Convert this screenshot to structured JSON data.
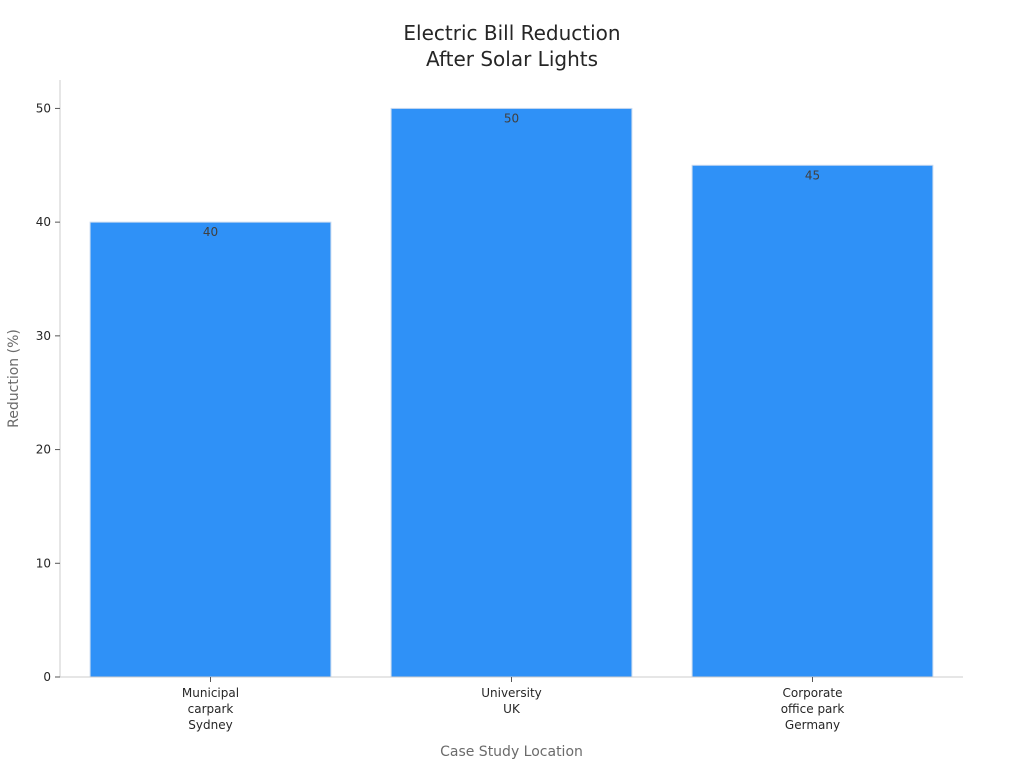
{
  "chart_data": {
    "type": "bar",
    "title": "Electric Bill Reduction\nAfter Solar Lights",
    "xlabel": "Case Study Location",
    "ylabel": "Reduction (%)",
    "categories": [
      "Municipal\ncarpark\nSydney",
      "University\nUK",
      "Corporate\noffice park\nGermany"
    ],
    "values": [
      40,
      50,
      45
    ],
    "data_labels": [
      "40",
      "50",
      "45"
    ],
    "ylim": [
      0,
      52.5
    ],
    "yticks": [
      0,
      10,
      20,
      30,
      40,
      50
    ],
    "grid": false,
    "legend": "none",
    "bar_color": "#2f91f7",
    "bar_edge_color": "#c9daf0"
  }
}
